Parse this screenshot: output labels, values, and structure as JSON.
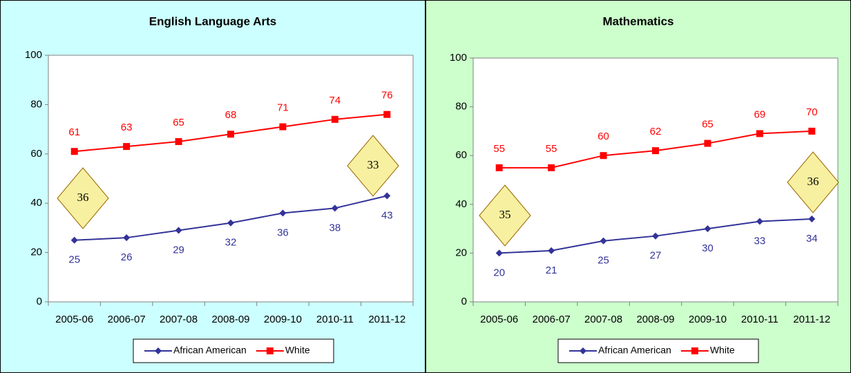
{
  "chart_data": [
    {
      "type": "line",
      "title": "English Language Arts",
      "categories": [
        "2005-06",
        "2006-07",
        "2007-08",
        "2008-09",
        "2009-10",
        "2010-11",
        "2011-12"
      ],
      "series": [
        {
          "name": "African American",
          "color": "#333399",
          "values": [
            25,
            26,
            29,
            32,
            36,
            38,
            43
          ]
        },
        {
          "name": "White",
          "color": "#ff0000",
          "values": [
            61,
            63,
            65,
            68,
            71,
            74,
            76
          ]
        }
      ],
      "ylim": [
        0,
        100
      ],
      "yticks": [
        0,
        20,
        40,
        60,
        80,
        100
      ],
      "legend": "bottom",
      "annotations": [
        "36",
        "33"
      ]
    },
    {
      "type": "line",
      "title": "Mathematics",
      "categories": [
        "2005-06",
        "2006-07",
        "2007-08",
        "2008-09",
        "2009-10",
        "2010-11",
        "2011-12"
      ],
      "series": [
        {
          "name": "African American",
          "color": "#333399",
          "values": [
            20,
            21,
            25,
            27,
            30,
            33,
            34
          ]
        },
        {
          "name": "White",
          "color": "#ff0000",
          "values": [
            55,
            55,
            60,
            62,
            65,
            69,
            70
          ]
        }
      ],
      "ylim": [
        0,
        100
      ],
      "yticks": [
        0,
        20,
        40,
        60,
        80,
        100
      ],
      "legend": "bottom",
      "annotations": [
        "35",
        "36"
      ]
    }
  ]
}
